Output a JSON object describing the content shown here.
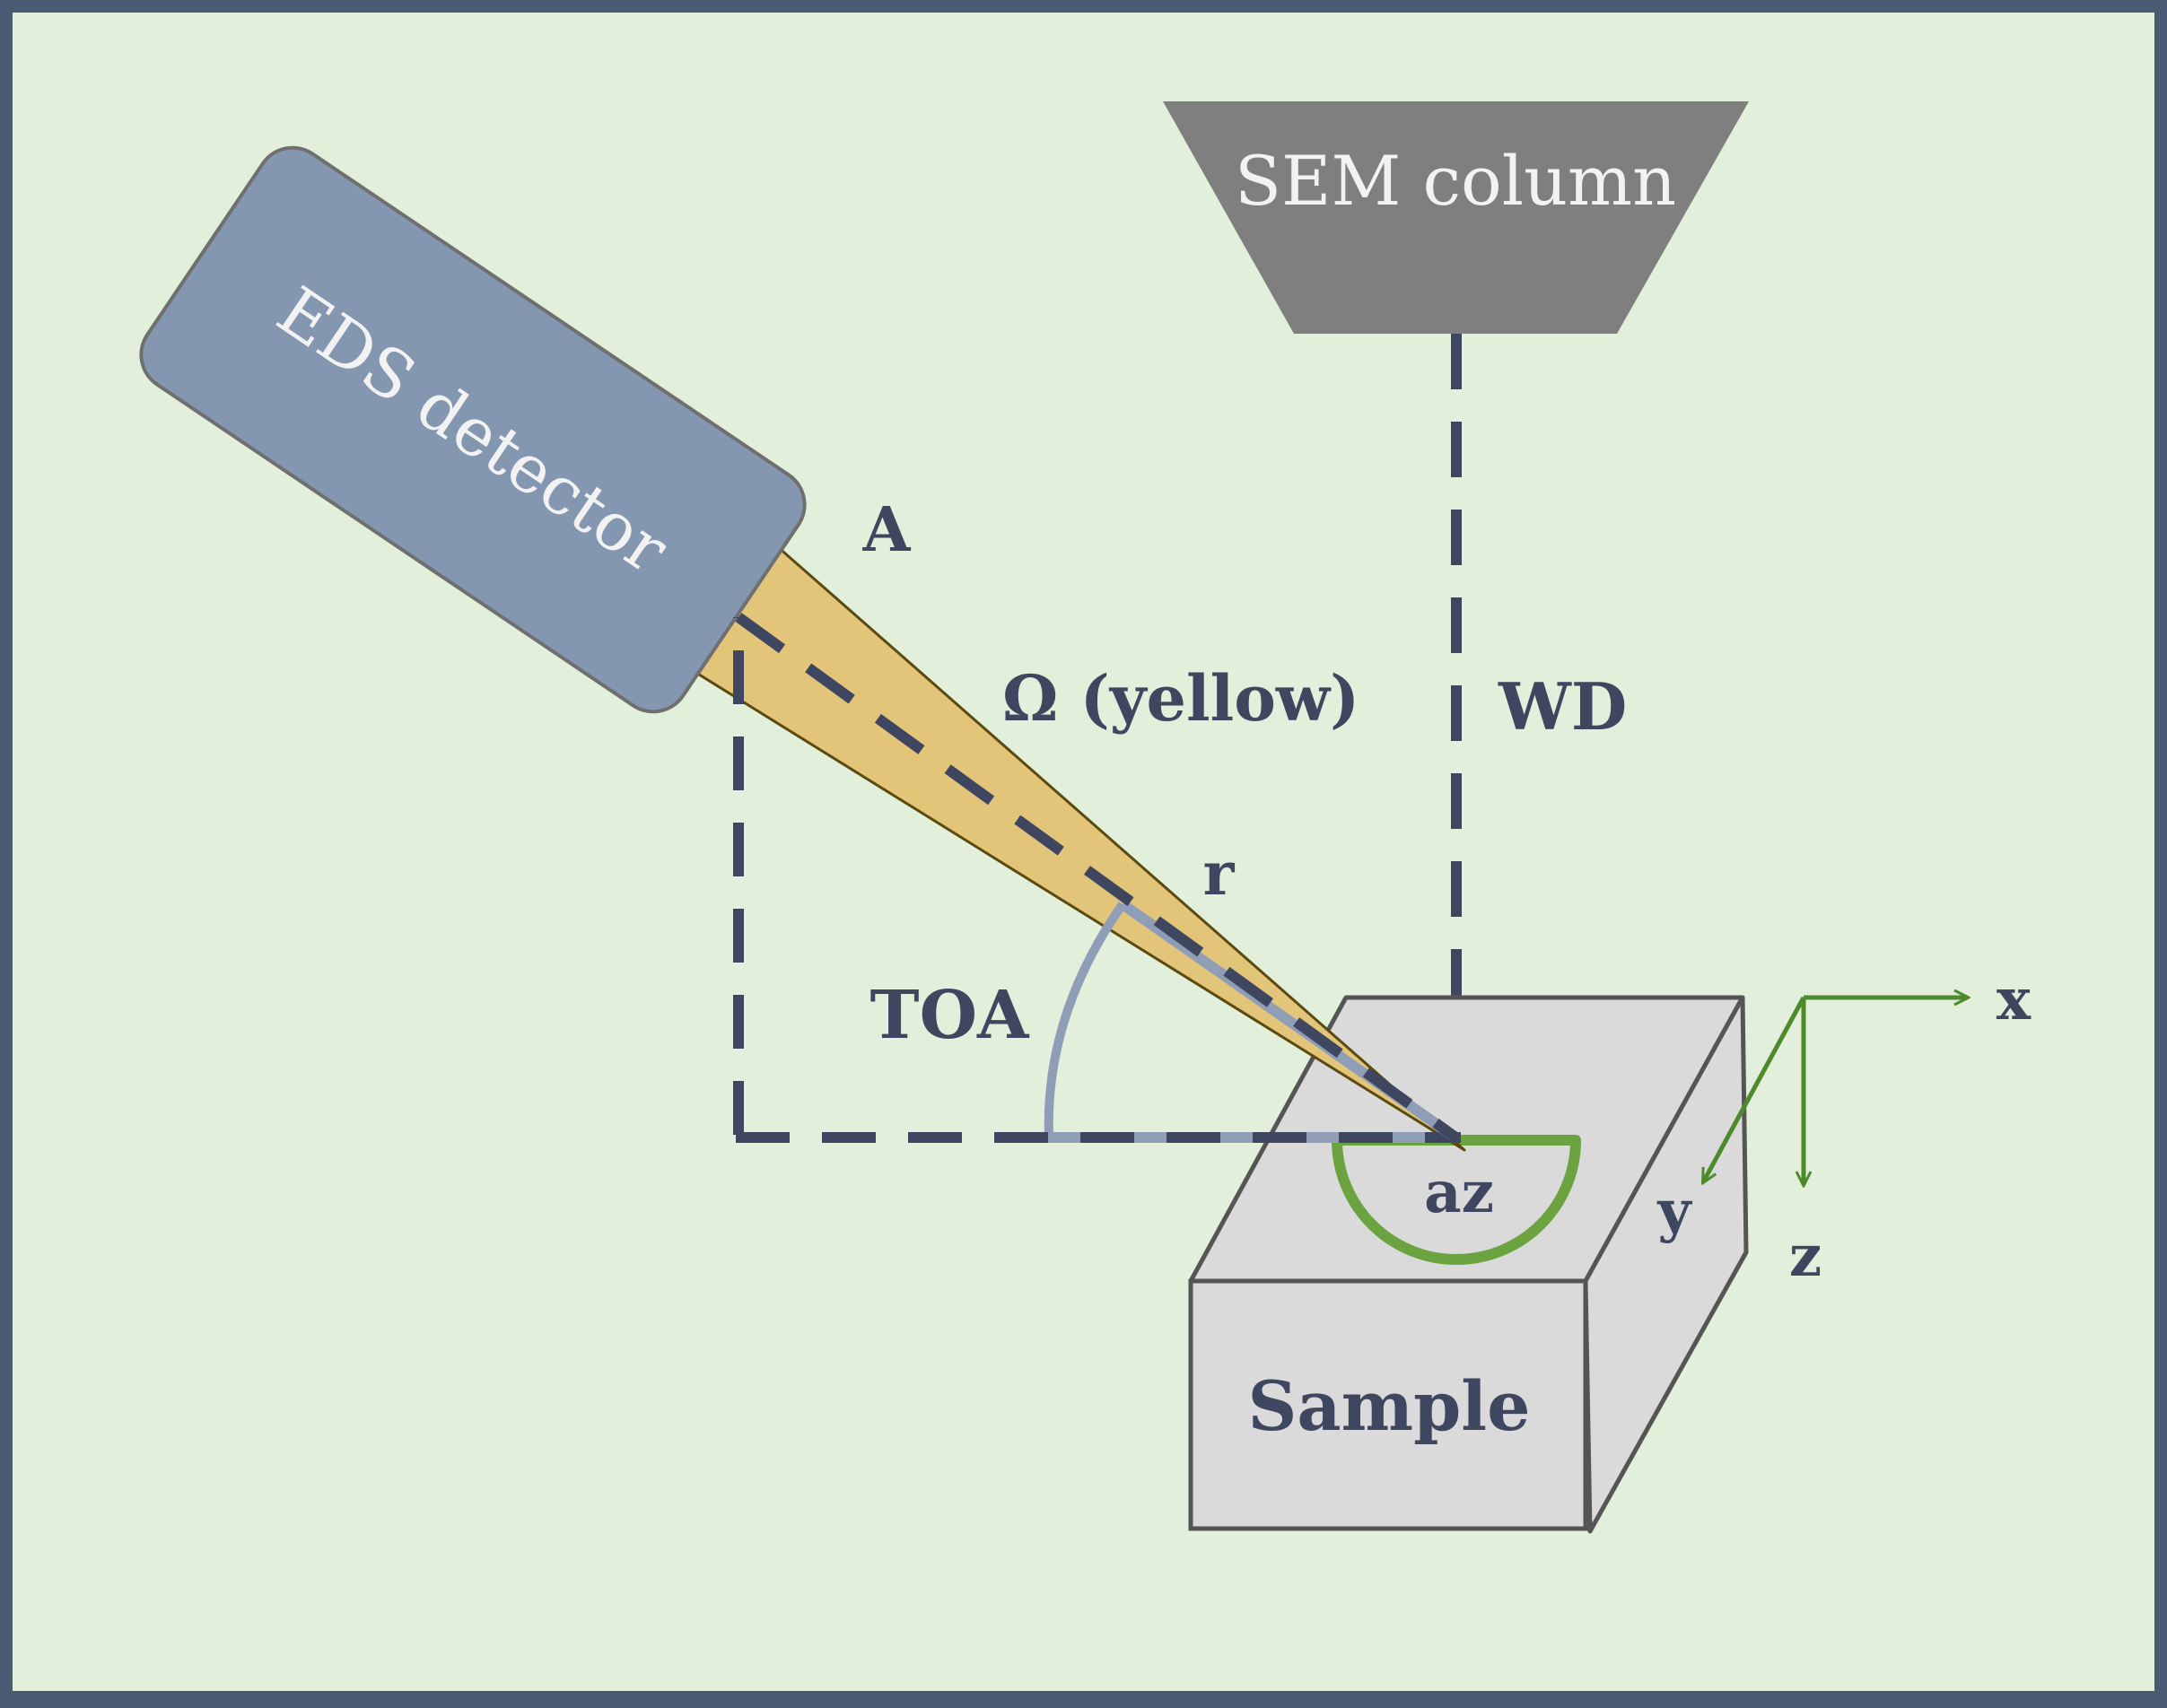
{
  "labels": {
    "sem_column": "SEM column",
    "eds_detector": "EDS detector",
    "point_a": "A",
    "omega": "Ω (yellow)",
    "wd": "WD",
    "r": "r",
    "toa": "TOA",
    "az": "az",
    "sample": "Sample",
    "axis_x": "x",
    "axis_y": "y",
    "axis_z": "z"
  },
  "colors": {
    "background": "#e2efda",
    "frame": "#4a5a72",
    "detector": "#8497b0",
    "cone": "#e3c57a",
    "column": "#7f7f7f",
    "sample": "#dadada",
    "dash": "#3f4660",
    "angle_arc": "#8f9db7",
    "azimuth": "#6aa33f",
    "axes": "#4d8a2c"
  }
}
